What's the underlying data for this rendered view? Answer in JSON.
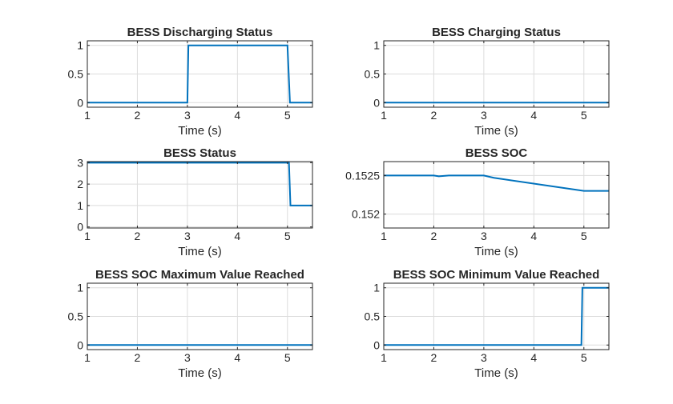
{
  "chart_data": [
    {
      "type": "line",
      "title": "BESS Discharging Status",
      "xlabel": "Time (s)",
      "xlim": [
        1,
        5.5
      ],
      "ylim": [
        -0.08,
        1.08
      ],
      "xticks": [
        1,
        2,
        3,
        4,
        5
      ],
      "yticks": [
        0,
        0.5,
        1
      ],
      "yticklabels": [
        "0",
        "0.5",
        "1"
      ],
      "grid": true,
      "color": "#0072BD",
      "x": [
        1,
        3.0,
        3.02,
        5.0,
        5.05,
        5.5
      ],
      "y": [
        0,
        0,
        1,
        1,
        0,
        0
      ]
    },
    {
      "type": "line",
      "title": "BESS Charging Status",
      "xlabel": "Time (s)",
      "xlim": [
        1,
        5.5
      ],
      "ylim": [
        -0.08,
        1.08
      ],
      "xticks": [
        1,
        2,
        3,
        4,
        5
      ],
      "yticks": [
        0,
        0.5,
        1
      ],
      "yticklabels": [
        "0",
        "0.5",
        "1"
      ],
      "grid": true,
      "color": "#0072BD",
      "x": [
        1,
        5.5
      ],
      "y": [
        0,
        0
      ]
    },
    {
      "type": "line",
      "title": "BESS  Status",
      "xlabel": "Time (s)",
      "xlim": [
        1,
        5.5
      ],
      "ylim": [
        -0.05,
        3.05
      ],
      "xticks": [
        1,
        2,
        3,
        4,
        5
      ],
      "yticks": [
        0,
        1,
        2,
        3
      ],
      "yticklabels": [
        "0",
        "1",
        "2",
        "3"
      ],
      "grid": true,
      "color": "#0072BD",
      "x": [
        1,
        5.03,
        5.06,
        5.5
      ],
      "y": [
        3,
        3,
        1,
        1
      ]
    },
    {
      "type": "line",
      "title": "BESS SOC",
      "xlabel": "Time (s)",
      "xlim": [
        1,
        5.5
      ],
      "ylim": [
        0.15182,
        0.15268
      ],
      "xticks": [
        1,
        2,
        3,
        4,
        5
      ],
      "yticks": [
        0.152,
        0.1525
      ],
      "yticklabels": [
        "0.152",
        "0.1525"
      ],
      "grid": true,
      "color": "#0072BD",
      "x": [
        1,
        2.0,
        2.1,
        2.3,
        3.0,
        3.2,
        5.0,
        5.5
      ],
      "y": [
        0.1525,
        0.1525,
        0.15249,
        0.1525,
        0.1525,
        0.15247,
        0.1523,
        0.1523
      ]
    },
    {
      "type": "line",
      "title": "BESS SOC Maximum Value Reached",
      "xlabel": "Time (s)",
      "xlim": [
        1,
        5.5
      ],
      "ylim": [
        -0.08,
        1.08
      ],
      "xticks": [
        1,
        2,
        3,
        4,
        5
      ],
      "yticks": [
        0,
        0.5,
        1
      ],
      "yticklabels": [
        "0",
        "0.5",
        "1"
      ],
      "grid": true,
      "color": "#0072BD",
      "x": [
        1,
        5.5
      ],
      "y": [
        0,
        0
      ]
    },
    {
      "type": "line",
      "title": "BESS SOC Minimum Value Reached",
      "xlabel": "Time (s)",
      "xlim": [
        1,
        5.5
      ],
      "ylim": [
        -0.08,
        1.08
      ],
      "xticks": [
        1,
        2,
        3,
        4,
        5
      ],
      "yticks": [
        0,
        0.5,
        1
      ],
      "yticklabels": [
        "0",
        "0.5",
        "1"
      ],
      "grid": true,
      "color": "#0072BD",
      "x": [
        1,
        4.95,
        4.97,
        5.5
      ],
      "y": [
        0,
        0,
        1,
        1
      ]
    }
  ]
}
